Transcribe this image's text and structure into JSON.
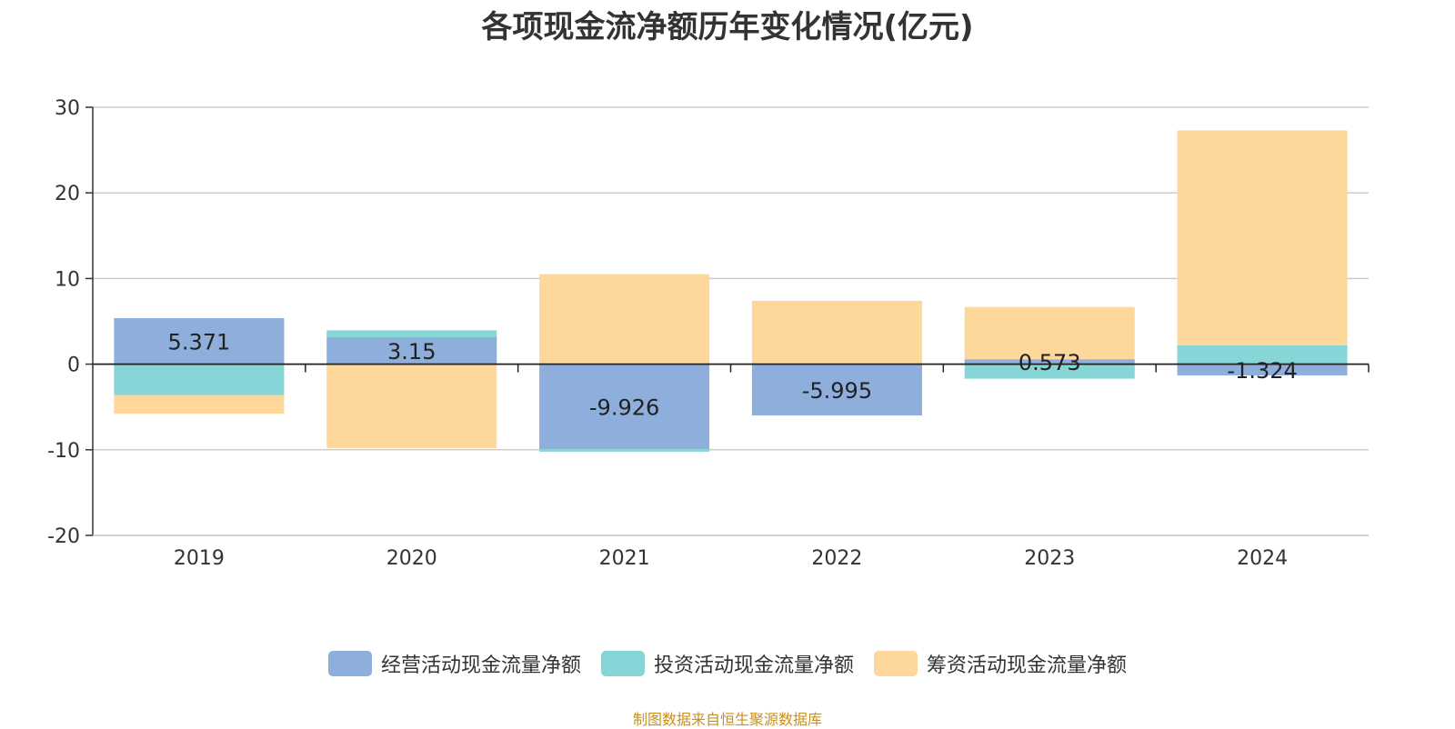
{
  "chart_data": {
    "type": "bar",
    "stacked": true,
    "title": "各项现金流净额历年变化情况(亿元)",
    "categories": [
      "2019",
      "2020",
      "2021",
      "2022",
      "2023",
      "2024"
    ],
    "ylim": [
      -20,
      30
    ],
    "yticks": [
      30,
      20,
      10,
      0,
      -10,
      -20
    ],
    "grid": true,
    "legend_position": "bottom",
    "series": [
      {
        "name": "经营活动现金流量净额",
        "color": "#8eaedb",
        "values": [
          5.371,
          3.15,
          -9.926,
          -5.995,
          0.573,
          -1.324
        ],
        "labels": [
          "5.371",
          "3.15",
          "-9.926",
          "-5.995",
          "0.573",
          "-1.324"
        ]
      },
      {
        "name": "投资活动现金流量净额",
        "color": "#86d6d8",
        "values": [
          -3.6,
          0.8,
          -0.3,
          0.0,
          -1.7,
          2.2
        ]
      },
      {
        "name": "筹资活动现金流量净额",
        "color": "#fdd89a",
        "values": [
          -2.2,
          -9.8,
          10.5,
          7.4,
          6.1,
          25.1
        ]
      }
    ]
  },
  "footer": "制图数据来自恒生聚源数据库"
}
